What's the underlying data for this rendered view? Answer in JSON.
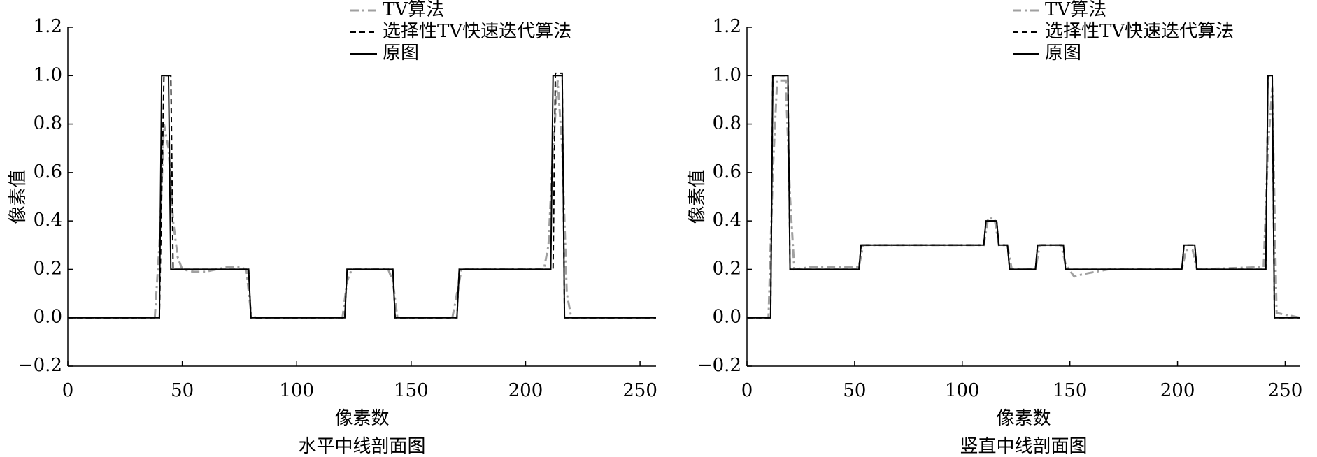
{
  "chart_data": [
    {
      "type": "line",
      "title": "水平中线剖面图",
      "xlabel": "像素数",
      "ylabel": "像素值",
      "xlim": [
        0,
        257
      ],
      "xticks": [
        0,
        50,
        100,
        150,
        200,
        250
      ],
      "ylim": [
        -0.2,
        1.2
      ],
      "yticks": [
        {
          "value": -0.2,
          "label": "−0.2"
        },
        {
          "value": 0,
          "label": "0.0"
        },
        0.2,
        0.4,
        0.6,
        0.8,
        {
          "value": 1,
          "label": "1.0"
        },
        1.2
      ],
      "series": [
        {
          "name": "TV算法",
          "color": "#a0a0a0",
          "style": "dashdot",
          "x": [
            0,
            38,
            40,
            42,
            44,
            46,
            48,
            50,
            55,
            60,
            65,
            70,
            75,
            78,
            80,
            82,
            120,
            122,
            124,
            140,
            142,
            144,
            168,
            170,
            172,
            208,
            210,
            212,
            214,
            216,
            218,
            220,
            257
          ],
          "values": [
            0,
            0,
            0.3,
            0.8,
            0.7,
            0.4,
            0.25,
            0.2,
            0.19,
            0.19,
            0.2,
            0.21,
            0.21,
            0.2,
            0.02,
            0,
            0,
            0.15,
            0.2,
            0.2,
            0.15,
            0,
            0,
            0.1,
            0.2,
            0.2,
            0.3,
            0.7,
            0.98,
            0.7,
            0.1,
            0,
            0
          ]
        },
        {
          "name": "选择性TV快速迭代算法",
          "color": "#000000",
          "style": "dashed",
          "x": [
            0,
            40,
            42,
            45,
            46,
            79,
            80,
            121,
            122,
            142,
            143,
            170,
            171,
            212,
            213,
            216,
            217,
            257
          ],
          "values": [
            0,
            0,
            1,
            1,
            0.2,
            0.2,
            0,
            0,
            0.2,
            0.2,
            0,
            0,
            0.2,
            0.2,
            1.01,
            1.01,
            0,
            0
          ]
        },
        {
          "name": "原图",
          "color": "#000000",
          "style": "solid",
          "x": [
            0,
            40,
            41,
            44,
            45,
            79,
            80,
            121,
            122,
            142,
            143,
            170,
            171,
            211,
            212,
            216,
            217,
            257
          ],
          "values": [
            0,
            0,
            1,
            1,
            0.2,
            0.2,
            0,
            0,
            0.2,
            0.2,
            0,
            0,
            0.2,
            0.2,
            1,
            1,
            0,
            0
          ]
        }
      ]
    },
    {
      "type": "line",
      "title": "竖直中线剖面图",
      "xlabel": "像素数",
      "ylabel": "像素值",
      "xlim": [
        0,
        257
      ],
      "xticks": [
        0,
        50,
        100,
        150,
        200,
        250
      ],
      "ylim": [
        -0.2,
        1.2
      ],
      "yticks": [
        {
          "value": -0.2,
          "label": "−0.2"
        },
        {
          "value": 0,
          "label": "0.0"
        },
        0.2,
        0.4,
        0.6,
        0.8,
        {
          "value": 1,
          "label": "1.0"
        },
        1.2
      ],
      "series": [
        {
          "name": "TV算法",
          "color": "#a0a0a0",
          "style": "dashdot",
          "x": [
            0,
            10,
            12,
            14,
            18,
            20,
            22,
            30,
            52,
            54,
            110,
            112,
            115,
            117,
            121,
            123,
            134,
            136,
            146,
            148,
            152,
            156,
            162,
            168,
            202,
            204,
            207,
            209,
            240,
            242,
            244,
            246,
            257
          ],
          "values": [
            0,
            0,
            0.6,
            0.98,
            0.98,
            0.5,
            0.2,
            0.21,
            0.21,
            0.3,
            0.3,
            0.41,
            0.41,
            0.3,
            0.3,
            0.2,
            0.2,
            0.3,
            0.3,
            0.22,
            0.17,
            0.18,
            0.19,
            0.2,
            0.2,
            0.28,
            0.28,
            0.2,
            0.21,
            0.7,
            0.95,
            0.02,
            0
          ]
        },
        {
          "name": "选择性TV快速迭代算法",
          "color": "#000000",
          "style": "dashed",
          "x": [
            0,
            11,
            12,
            19,
            20,
            52,
            53,
            110,
            111,
            116,
            117,
            121,
            122,
            134,
            135,
            147,
            148,
            202,
            203,
            208,
            209,
            241,
            242,
            244,
            245,
            257
          ],
          "values": [
            0,
            0,
            1,
            1,
            0.2,
            0.2,
            0.3,
            0.3,
            0.4,
            0.4,
            0.3,
            0.3,
            0.2,
            0.2,
            0.3,
            0.3,
            0.2,
            0.2,
            0.3,
            0.3,
            0.2,
            0.2,
            1,
            1,
            0,
            0
          ]
        },
        {
          "name": "原图",
          "color": "#000000",
          "style": "solid",
          "x": [
            0,
            11,
            12,
            19,
            20,
            52,
            53,
            110,
            111,
            116,
            117,
            121,
            122,
            134,
            135,
            147,
            148,
            202,
            203,
            208,
            209,
            241,
            242,
            244,
            245,
            257
          ],
          "values": [
            0,
            0,
            1,
            1,
            0.2,
            0.2,
            0.3,
            0.3,
            0.4,
            0.4,
            0.3,
            0.3,
            0.2,
            0.2,
            0.3,
            0.3,
            0.2,
            0.2,
            0.3,
            0.3,
            0.2,
            0.2,
            1,
            1,
            0,
            0
          ]
        }
      ]
    }
  ]
}
